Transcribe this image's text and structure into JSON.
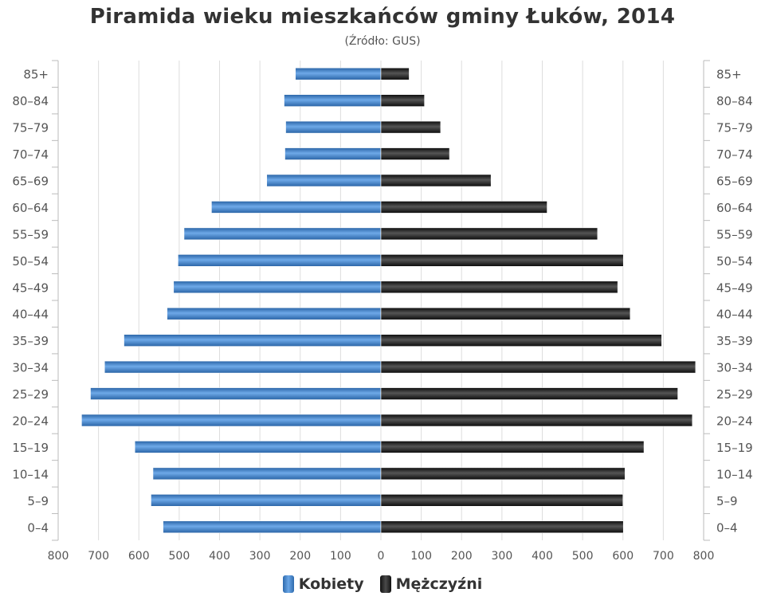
{
  "chart_data": {
    "type": "bar",
    "title": "Piramida wieku mieszkańców gminy Łuków, 2014",
    "subtitle": "(Źródło: GUS)",
    "categories": [
      "85+",
      "80-84",
      "75-79",
      "70-74",
      "65-69",
      "60-64",
      "55-59",
      "50-54",
      "45-49",
      "40-44",
      "35-39",
      "30-34",
      "25-29",
      "20-24",
      "15-19",
      "10-14",
      "5-9",
      "0-4"
    ],
    "category_labels": [
      "85+",
      "80–84",
      "75–79",
      "70–74",
      "65–69",
      "60–64",
      "55–59",
      "50–54",
      "45–49",
      "40–44",
      "35–39",
      "30–34",
      "25–29",
      "20–24",
      "15–19",
      "10–14",
      "5–9",
      "0–4"
    ],
    "series": [
      {
        "name": "Kobiety",
        "color": "#3a7cc2",
        "values": [
          212,
          240,
          236,
          238,
          283,
          420,
          488,
          503,
          514,
          530,
          637,
          685,
          720,
          742,
          610,
          565,
          570,
          540
        ]
      },
      {
        "name": "Mężczyźni",
        "color": "#1a1a1a",
        "values": [
          70,
          108,
          148,
          170,
          273,
          412,
          537,
          601,
          587,
          618,
          696,
          780,
          736,
          772,
          652,
          605,
          600,
          601
        ]
      }
    ],
    "xlim": [
      -800,
      800
    ],
    "x_ticks": [
      "800",
      "700",
      "600",
      "500",
      "400",
      "300",
      "200",
      "100",
      "0",
      "100",
      "200",
      "300",
      "400",
      "500",
      "600",
      "700",
      "800"
    ],
    "grid": true,
    "legend_position": "bottom"
  }
}
